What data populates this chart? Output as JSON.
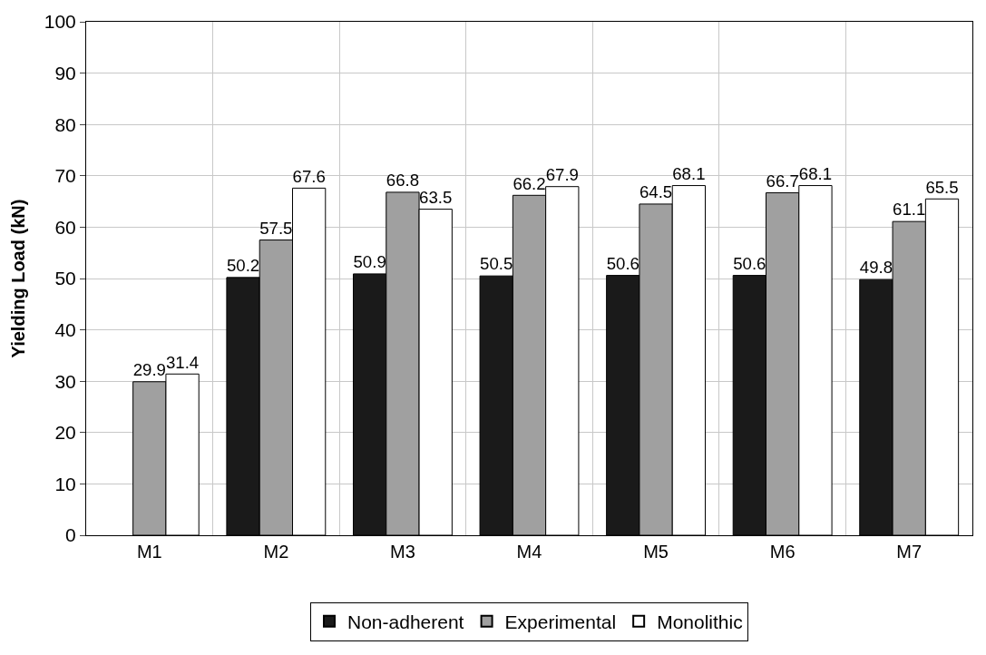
{
  "chart_data": {
    "type": "bar",
    "ylabel": "Yielding Load (kN)",
    "categories": [
      "M1",
      "M2",
      "M3",
      "M4",
      "M5",
      "M6",
      "M7"
    ],
    "series": [
      {
        "name": "Non-adherent",
        "color": "#1a1a1a",
        "values": [
          null,
          50.2,
          50.9,
          50.5,
          50.6,
          50.6,
          49.8
        ]
      },
      {
        "name": "Experimental",
        "color": "#a0a0a0",
        "values": [
          29.9,
          57.5,
          66.8,
          66.2,
          64.5,
          66.7,
          61.1
        ]
      },
      {
        "name": "Monolithic",
        "color": "#ffffff",
        "values": [
          31.4,
          67.6,
          63.5,
          67.9,
          68.1,
          68.1,
          65.5
        ]
      }
    ],
    "ylim": [
      0,
      100
    ],
    "yticks": [
      0,
      10,
      20,
      30,
      40,
      50,
      60,
      70,
      80,
      90,
      100
    ],
    "grid": true,
    "legend": "bottom",
    "data_labels": true
  }
}
